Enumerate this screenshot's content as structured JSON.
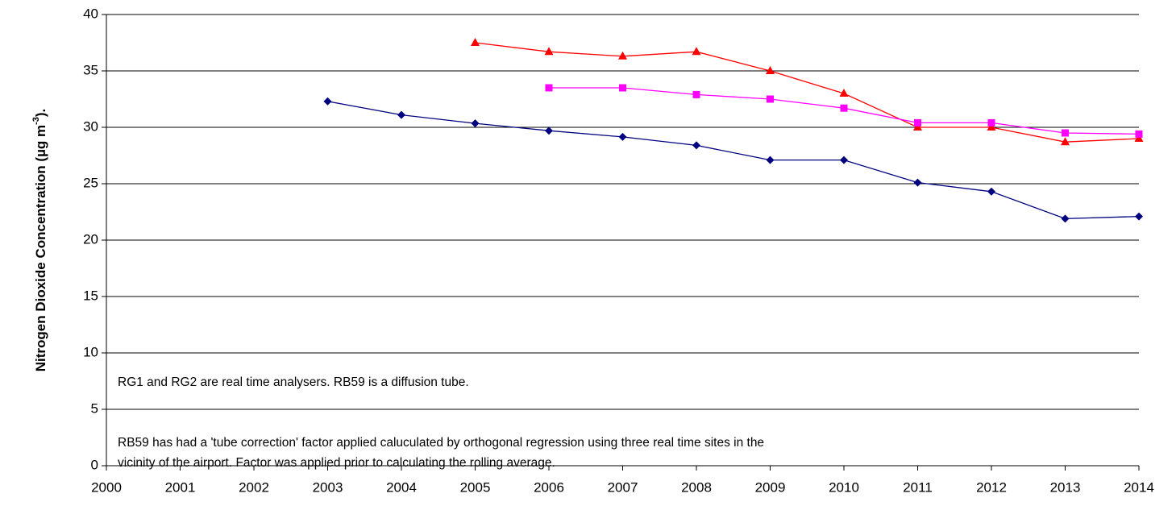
{
  "chart_data": {
    "type": "line",
    "ylabel": "Nitrogen Dioxide Concentration (µg m",
    "ylabel_sup": "-3",
    "ylabel_end": ").",
    "x": [
      2000,
      2001,
      2002,
      2003,
      2004,
      2005,
      2006,
      2007,
      2008,
      2009,
      2010,
      2011,
      2012,
      2013,
      2014
    ],
    "series": [
      {
        "color": "#000080",
        "marker": "diamond",
        "values": [
          null,
          null,
          null,
          32.3,
          31.1,
          30.35,
          29.7,
          29.15,
          28.4,
          27.1,
          27.1,
          25.1,
          24.3,
          21.9,
          22.1
        ]
      },
      {
        "color": "#ff0000",
        "marker": "triangle",
        "values": [
          null,
          null,
          null,
          null,
          null,
          37.5,
          36.7,
          36.3,
          36.7,
          35.0,
          33.0,
          30.0,
          30.0,
          28.7,
          29.0
        ]
      },
      {
        "color": "#ff00ff",
        "marker": "square",
        "values": [
          null,
          null,
          null,
          null,
          null,
          null,
          33.5,
          33.5,
          32.9,
          32.5,
          31.7,
          30.4,
          30.4,
          29.5,
          29.4
        ]
      }
    ],
    "xlim": [
      2000,
      2014
    ],
    "xticks": [
      2000,
      2001,
      2002,
      2003,
      2004,
      2005,
      2006,
      2007,
      2008,
      2009,
      2010,
      2011,
      2012,
      2013,
      2014
    ],
    "ylim": [
      0,
      40
    ],
    "yticks": [
      0,
      5,
      10,
      15,
      20,
      25,
      30,
      35,
      40
    ],
    "grid": true,
    "annotations": [
      "RG1 and RG2 are real time analysers. RB59 is a diffusion tube.",
      "RB59 has had a 'tube correction' factor applied caluculated by orthogonal regression using three real time sites in the",
      "vicinity of the airport. Factor was applied prior to calculating the rolling average."
    ]
  }
}
